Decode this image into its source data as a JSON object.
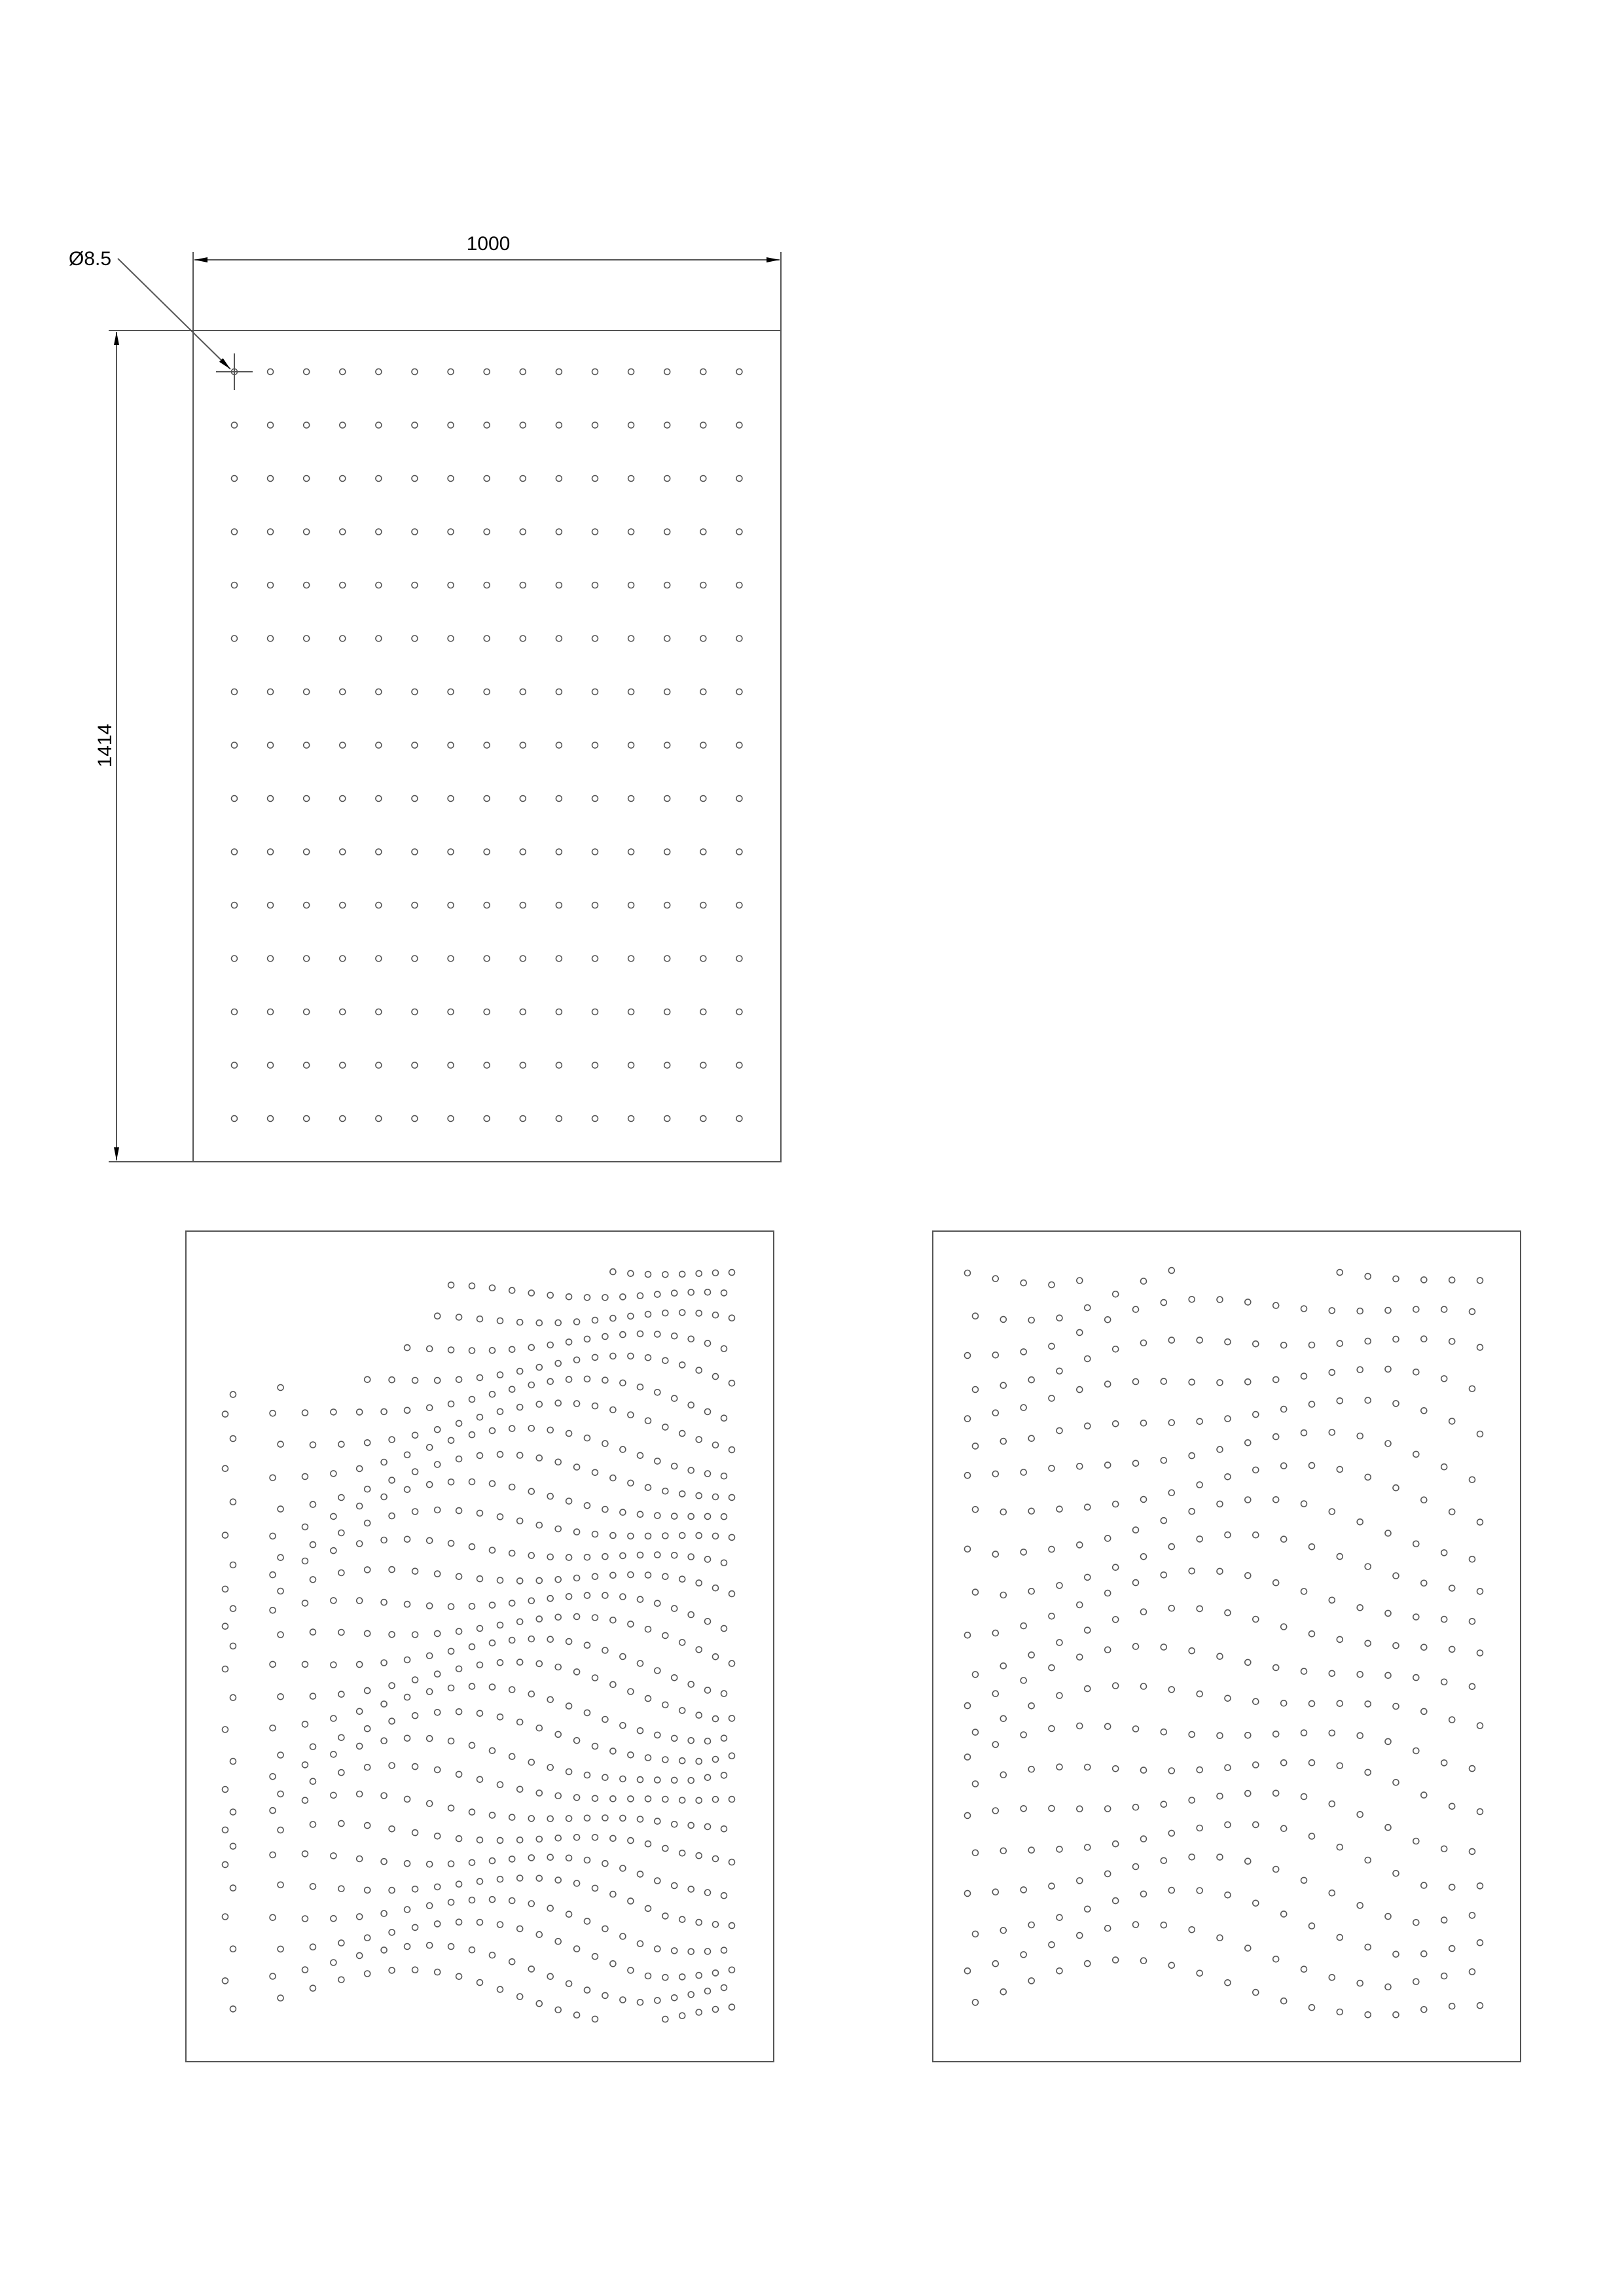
{
  "drawing": {
    "width_label": "1000",
    "height_label": "1414",
    "hole_label": "Ø8.5"
  }
}
